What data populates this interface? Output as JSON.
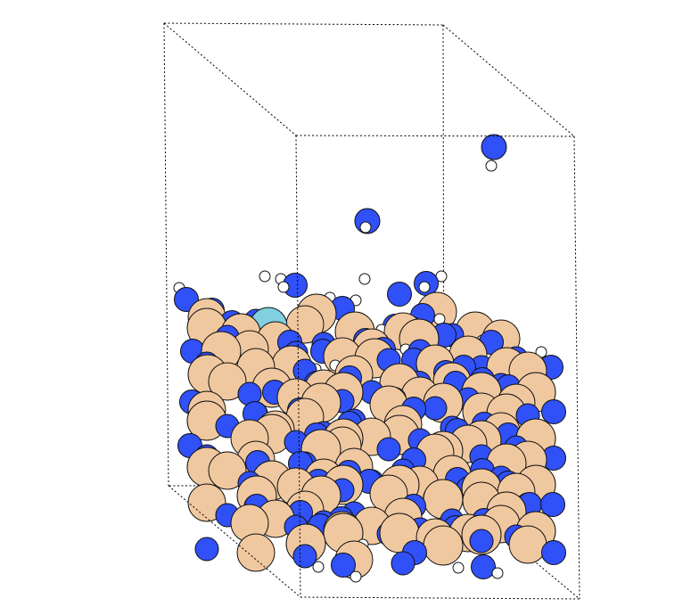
{
  "figure": {
    "kind": "ball-model",
    "background": "#ffffff",
    "colors": {
      "slab_atom": "#f0c8a0",
      "anion_atom": "#3050f8",
      "hydrogen_atom": "#ffffff",
      "adsorbate_atom": "#80d0e0",
      "outline": "#111111",
      "cell_edge": "#000000"
    },
    "elements": [
      {
        "key": "slab",
        "label": ""
      },
      {
        "key": "anion",
        "label": ""
      },
      {
        "key": "hydrogen",
        "label": ""
      },
      {
        "key": "adsorbate",
        "label": ""
      }
    ]
  }
}
